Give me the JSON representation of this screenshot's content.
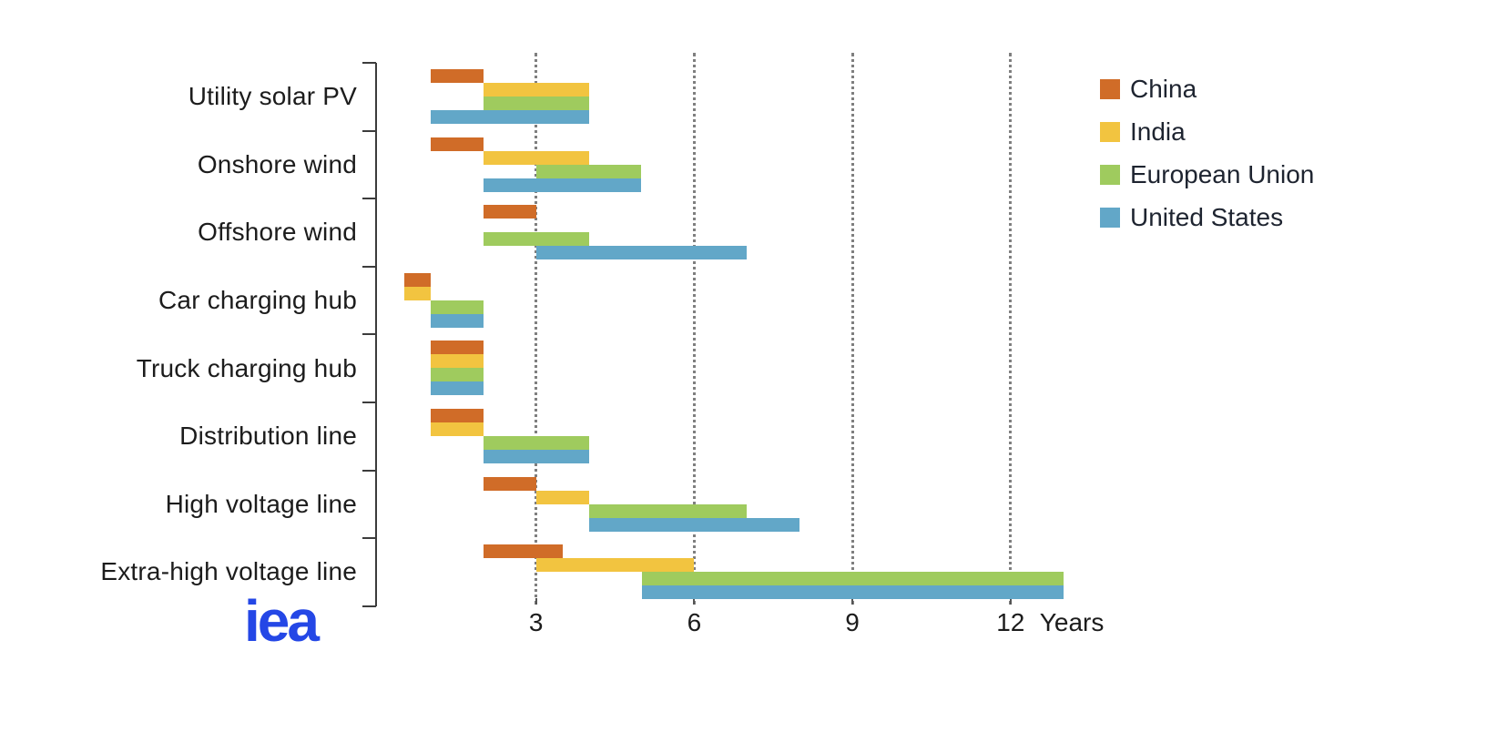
{
  "branding": {
    "logo_text": "iea",
    "logo_color": "#2447E6"
  },
  "chart_data": {
    "type": "bar",
    "subtype": "horizontal-range",
    "title": "",
    "xlabel": "Years",
    "x_ticks": [
      3,
      6,
      9,
      12
    ],
    "xlim": [
      0,
      14.1
    ],
    "grid": "vertical-dotted",
    "legend_position": "top-right",
    "units": "years",
    "categories": [
      "Utility solar PV",
      "Onshore wind",
      "Offshore wind",
      "Car charging hub",
      "Truck charging hub",
      "Distribution line",
      "High voltage line",
      "Extra-high voltage line"
    ],
    "series": [
      {
        "name": "China",
        "color": "#D06C28",
        "ranges": [
          [
            1,
            2
          ],
          [
            1,
            2
          ],
          [
            2,
            3
          ],
          [
            0.5,
            1
          ],
          [
            1,
            2
          ],
          [
            1,
            2
          ],
          [
            2,
            3
          ],
          [
            2,
            3.5
          ]
        ]
      },
      {
        "name": "India",
        "color": "#F2C440",
        "ranges": [
          [
            2,
            4
          ],
          [
            2,
            4
          ],
          null,
          [
            0.5,
            1
          ],
          [
            1,
            2
          ],
          [
            1,
            2
          ],
          [
            3,
            4
          ],
          [
            3,
            6
          ]
        ]
      },
      {
        "name": "European Union",
        "color": "#9FCB5E",
        "ranges": [
          [
            2,
            4
          ],
          [
            3,
            5
          ],
          [
            2,
            4
          ],
          [
            1,
            2
          ],
          [
            1,
            2
          ],
          [
            2,
            4
          ],
          [
            4,
            7
          ],
          [
            5,
            13
          ]
        ]
      },
      {
        "name": "United States",
        "color": "#62A7C8",
        "ranges": [
          [
            1,
            4
          ],
          [
            2,
            5
          ],
          [
            3,
            7
          ],
          [
            1,
            2
          ],
          [
            1,
            2
          ],
          [
            2,
            4
          ],
          [
            4,
            8
          ],
          [
            5,
            13
          ]
        ]
      }
    ]
  }
}
